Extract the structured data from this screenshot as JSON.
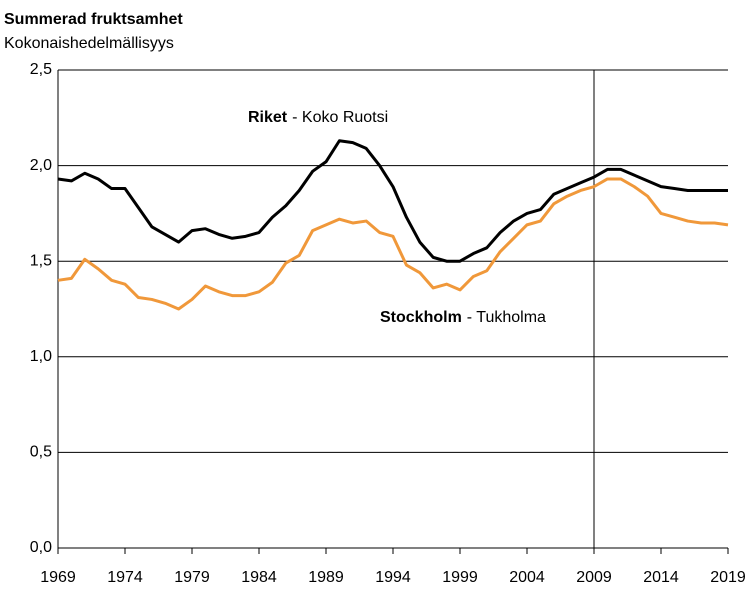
{
  "chart_data": {
    "type": "line",
    "title": "Summerad fruktsamhet",
    "subtitle": "Kokonaishedelmällisyys",
    "x": [
      1969,
      1970,
      1971,
      1972,
      1973,
      1974,
      1975,
      1976,
      1977,
      1978,
      1979,
      1980,
      1981,
      1982,
      1983,
      1984,
      1985,
      1986,
      1987,
      1988,
      1989,
      1990,
      1991,
      1992,
      1993,
      1994,
      1995,
      1996,
      1997,
      1998,
      1999,
      2000,
      2001,
      2002,
      2003,
      2004,
      2005,
      2006,
      2007,
      2008,
      2009,
      2010,
      2011,
      2012,
      2013,
      2014,
      2015,
      2016,
      2017,
      2018,
      2019
    ],
    "series": [
      {
        "name": "Riket",
        "color": "#000000",
        "values": [
          1.93,
          1.92,
          1.96,
          1.93,
          1.88,
          1.88,
          1.78,
          1.68,
          1.64,
          1.6,
          1.66,
          1.67,
          1.64,
          1.62,
          1.63,
          1.65,
          1.73,
          1.79,
          1.87,
          1.97,
          2.02,
          2.13,
          2.12,
          2.09,
          2.0,
          1.89,
          1.73,
          1.6,
          1.52,
          1.5,
          1.5,
          1.54,
          1.57,
          1.65,
          1.71,
          1.75,
          1.77,
          1.85,
          1.88,
          1.91,
          1.94,
          1.98,
          1.98,
          1.95,
          1.92,
          1.89,
          1.88,
          1.87,
          1.87,
          1.87,
          1.87
        ]
      },
      {
        "name": "Stockholm",
        "color": "#f0983a",
        "values": [
          1.4,
          1.41,
          1.51,
          1.46,
          1.4,
          1.38,
          1.31,
          1.3,
          1.28,
          1.25,
          1.3,
          1.37,
          1.34,
          1.32,
          1.32,
          1.34,
          1.39,
          1.49,
          1.53,
          1.66,
          1.69,
          1.72,
          1.7,
          1.71,
          1.65,
          1.63,
          1.48,
          1.44,
          1.36,
          1.38,
          1.35,
          1.42,
          1.45,
          1.55,
          1.62,
          1.69,
          1.71,
          1.8,
          1.84,
          1.87,
          1.89,
          1.93,
          1.93,
          1.89,
          1.84,
          1.75,
          1.73,
          1.71,
          1.7,
          1.7,
          1.69
        ]
      }
    ],
    "annotations": [
      "- Koko Ruotsi",
      "- Tukholma"
    ],
    "xlim": [
      1969,
      2019
    ],
    "xticks": [
      1969,
      1974,
      1979,
      1984,
      1989,
      1994,
      1999,
      2004,
      2009,
      2014,
      2019
    ],
    "ylim": [
      0,
      2.5
    ],
    "yticks": [
      {
        "value": 0,
        "label": "0,0"
      },
      {
        "value": 0.5,
        "label": "0,5"
      },
      {
        "value": 1,
        "label": "1,0"
      },
      {
        "value": 1.5,
        "label": "1,5"
      },
      {
        "value": 2,
        "label": "2,0"
      },
      {
        "value": 2.5,
        "label": "2,5"
      }
    ],
    "grid": true,
    "vline": 2009
  }
}
